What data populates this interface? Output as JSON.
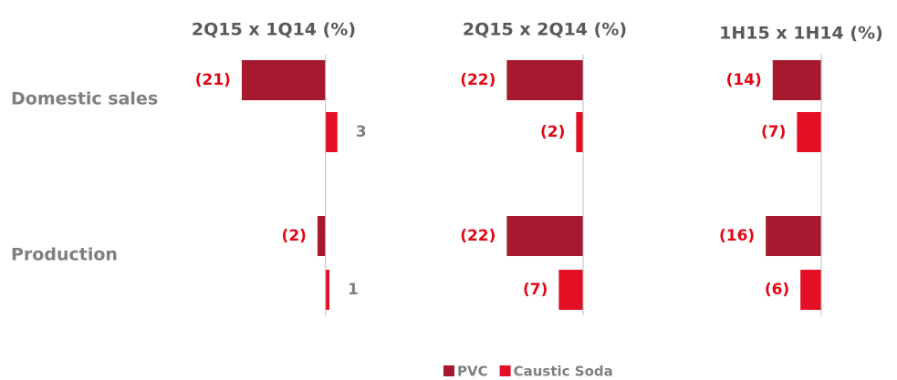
{
  "chart_data": {
    "type": "bar",
    "orientation": "horizontal",
    "categories": [
      "Domestic sales",
      "Production"
    ],
    "series": [
      {
        "name": "PVC",
        "color": "#a6192e"
      },
      {
        "name": "Caustic Soda",
        "color": "#e30f24"
      }
    ],
    "panels": [
      {
        "title": "2Q15 x 1Q14 (%)",
        "xlim": [
          -25,
          5
        ],
        "values": [
          [
            -21,
            -2
          ],
          [
            3,
            1
          ]
        ],
        "value_labels": [
          [
            "(21)",
            "(2)"
          ],
          [
            "3",
            "1"
          ]
        ]
      },
      {
        "title": "2Q15 x 2Q14 (%)",
        "xlim": [
          -25,
          5
        ],
        "values": [
          [
            -22,
            -22
          ],
          [
            -2,
            -7
          ]
        ],
        "value_labels": [
          [
            "(22)",
            "(22)"
          ],
          [
            "(2)",
            "(7)"
          ]
        ]
      },
      {
        "title": "1H15 x 1H14 (%)",
        "xlim": [
          -25,
          5
        ],
        "values": [
          [
            -14,
            -16
          ],
          [
            -7,
            -6
          ]
        ],
        "value_labels": [
          [
            "(14)",
            "(16)"
          ],
          [
            "(7)",
            "(6)"
          ]
        ]
      }
    ]
  }
}
